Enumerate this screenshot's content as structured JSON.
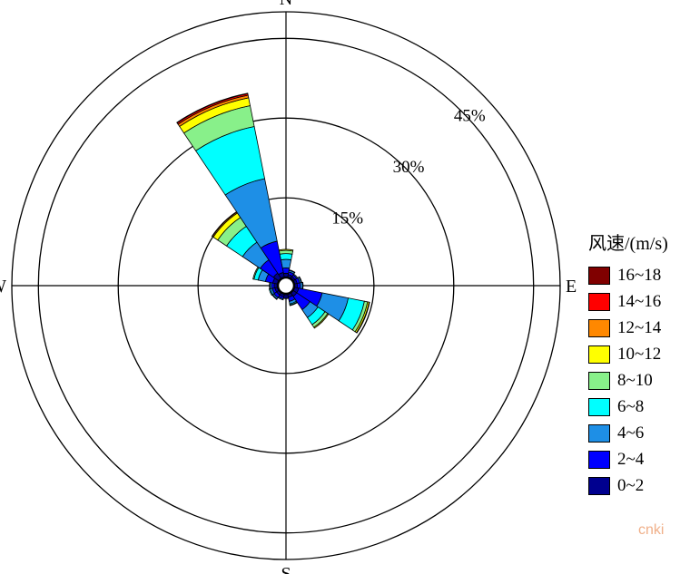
{
  "chart_data": {
    "type": "windrose",
    "unit": "%",
    "directions": [
      "N",
      "NNE",
      "NE",
      "ENE",
      "E",
      "ESE",
      "SE",
      "SSE",
      "S",
      "SSW",
      "SW",
      "WSW",
      "W",
      "WNW",
      "NW",
      "NNW"
    ],
    "direction_labels": {
      "N": "N",
      "E": "E",
      "S": "S",
      "W": "W"
    },
    "rings": [
      15,
      30,
      45
    ],
    "ring_labels": [
      "15%",
      "30%",
      "45%"
    ],
    "rmax": 50,
    "speed_bins": [
      {
        "label": "0~2",
        "color": "#00008f"
      },
      {
        "label": "2~4",
        "color": "#0000ff"
      },
      {
        "label": "4~6",
        "color": "#1e8fe6"
      },
      {
        "label": "6~8",
        "color": "#00ffff"
      },
      {
        "label": "8~10",
        "color": "#88f08a"
      },
      {
        "label": "10~12",
        "color": "#ffff00"
      },
      {
        "label": "12~14",
        "color": "#ff8800"
      },
      {
        "label": "14~16",
        "color": "#ff0000"
      },
      {
        "label": "16~18",
        "color": "#800000"
      }
    ],
    "legend_title": "风速/(m/s)",
    "series": [
      {
        "direction": "N",
        "values": [
          0.8,
          1.0,
          1.6,
          1.1,
          0.6,
          0.2,
          0,
          0,
          0
        ]
      },
      {
        "direction": "NNE",
        "values": [
          0.6,
          0.5,
          0.3,
          0.1,
          0,
          0,
          0,
          0,
          0
        ]
      },
      {
        "direction": "NE",
        "values": [
          0.5,
          0.4,
          0.2,
          0,
          0,
          0,
          0,
          0,
          0
        ]
      },
      {
        "direction": "ENE",
        "values": [
          0.6,
          0.5,
          0.3,
          0.1,
          0,
          0,
          0,
          0,
          0
        ]
      },
      {
        "direction": "E",
        "values": [
          0.6,
          0.6,
          0.4,
          0.1,
          0,
          0,
          0,
          0,
          0
        ]
      },
      {
        "direction": "ESE",
        "values": [
          0.9,
          4.5,
          5.0,
          3.1,
          0.6,
          0.3,
          0.1,
          0,
          0
        ]
      },
      {
        "direction": "SE",
        "values": [
          0.9,
          3.0,
          1.8,
          1.6,
          0.6,
          0.2,
          0,
          0,
          0
        ]
      },
      {
        "direction": "SSE",
        "values": [
          0.7,
          0.8,
          0.5,
          0.2,
          0.1,
          0,
          0,
          0,
          0
        ]
      },
      {
        "direction": "S",
        "values": [
          0.5,
          0.3,
          0.1,
          0,
          0,
          0,
          0,
          0,
          0
        ]
      },
      {
        "direction": "SSW",
        "values": [
          0.6,
          0.4,
          0.2,
          0,
          0,
          0,
          0,
          0,
          0
        ]
      },
      {
        "direction": "SW",
        "values": [
          0.6,
          0.6,
          0.3,
          0.1,
          0,
          0,
          0,
          0,
          0
        ]
      },
      {
        "direction": "WSW",
        "values": [
          0.6,
          0.5,
          0.4,
          0.2,
          0,
          0,
          0,
          0,
          0
        ]
      },
      {
        "direction": "W",
        "values": [
          0.7,
          0.5,
          0.3,
          0.1,
          0,
          0,
          0,
          0,
          0
        ]
      },
      {
        "direction": "WNW",
        "values": [
          1.0,
          1.4,
          1.4,
          0.8,
          0.2,
          0,
          0,
          0,
          0
        ]
      },
      {
        "direction": "NW",
        "values": [
          1.3,
          3.0,
          4.0,
          3.6,
          2.0,
          1.0,
          0.2,
          0.1,
          0
        ]
      },
      {
        "direction": "NNW",
        "values": [
          1.0,
          6.0,
          12.0,
          10.0,
          4.0,
          1.5,
          0.5,
          0.3,
          0.1
        ]
      }
    ]
  },
  "watermark": "cnki"
}
